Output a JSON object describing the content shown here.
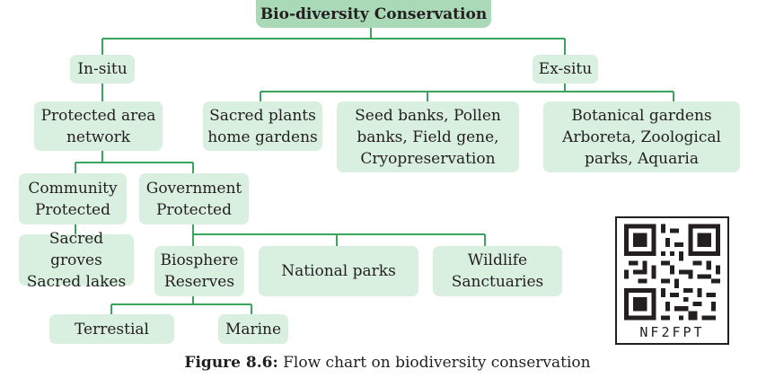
{
  "diagram": {
    "root": "Bio-diversity Conservation",
    "in_situ": "In-situ",
    "ex_situ": "Ex-situ",
    "protected_area": "Protected area\nnetwork",
    "sacred_plants": "Sacred plants\nhome gardens",
    "seed_banks": "Seed banks, Pollen\nbanks, Field gene,\nCryopreservation",
    "botanical": "Botanical gardens\nArboreta, Zoological\nparks, Aquaria",
    "community": "Community\nProtected",
    "government": "Government\nProtected",
    "sacred_groves": "Sacred groves\nSacred lakes",
    "biosphere": "Biosphere\nReserves",
    "national_parks": "National parks",
    "wildlife": "Wildlife\nSanctuaries",
    "terrestrial": "Terrestial",
    "marine": "Marine"
  },
  "caption": {
    "label": "Figure 8.6:",
    "text": " Flow chart on biodiversity conservation"
  },
  "qr": {
    "code": "NF2FPT"
  },
  "colors": {
    "node_fill": "#d9efdf",
    "root_fill": "#a9d9b6",
    "connector": "#3aa35c"
  }
}
